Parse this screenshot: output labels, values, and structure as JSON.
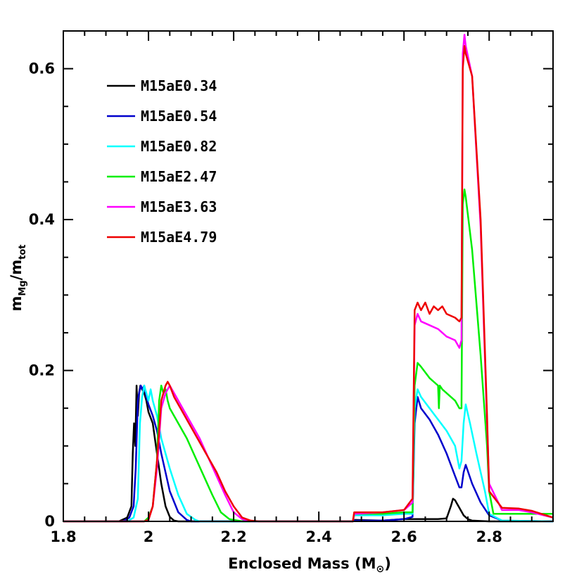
{
  "chart_data": {
    "type": "line",
    "xlabel": "Enclosed Mass (M",
    "xlabel_symbol": "⊙",
    "xlabel_close": ")",
    "ylabel_main": "m",
    "ylabel_sub": "Mg",
    "ylabel_slash": "/m",
    "ylabel_sub2": "tot",
    "xlim": [
      1.8,
      2.95
    ],
    "ylim": [
      0,
      0.65
    ],
    "x_ticks": [
      1.8,
      2.0,
      2.2,
      2.4,
      2.6,
      2.8
    ],
    "x_tick_labels": [
      "1.8",
      "2",
      "2.2",
      "2.4",
      "2.6",
      "2.8"
    ],
    "y_ticks": [
      0,
      0.2,
      0.4,
      0.6
    ],
    "y_tick_labels": [
      "0",
      "0.2",
      "0.4",
      "0.6"
    ],
    "x_minor_step": 0.05,
    "y_minor_step": 0.05,
    "grid": false,
    "legend_position": "top-left",
    "series": [
      {
        "name": "M15aE0.34",
        "color": "#000000",
        "x": [
          1.8,
          1.93,
          1.95,
          1.96,
          1.963,
          1.966,
          1.969,
          1.972,
          1.975,
          1.978,
          1.981,
          1.985,
          1.99,
          1.995,
          2.0,
          2.01,
          2.02,
          2.03,
          2.04,
          2.05,
          2.06,
          2.07,
          2.09,
          2.48,
          2.483,
          2.55,
          2.6,
          2.62,
          2.64,
          2.66,
          2.68,
          2.7,
          2.71,
          2.715,
          2.72,
          2.73,
          2.74,
          2.75,
          2.76,
          2.8,
          2.95
        ],
        "y": [
          0,
          0,
          0.005,
          0.02,
          0.09,
          0.13,
          0.1,
          0.18,
          0.14,
          0.17,
          0.18,
          0.175,
          0.17,
          0.16,
          0.145,
          0.13,
          0.09,
          0.05,
          0.02,
          0.006,
          0.001,
          0,
          0,
          0,
          0.002,
          0.001,
          0.003,
          0.003,
          0.003,
          0.003,
          0.003,
          0.004,
          0.02,
          0.03,
          0.028,
          0.018,
          0.008,
          0.003,
          0.001,
          0,
          0
        ]
      },
      {
        "name": "M15aE0.54",
        "color": "#0000cc",
        "x": [
          1.8,
          1.94,
          1.955,
          1.965,
          1.97,
          1.975,
          1.978,
          1.982,
          1.986,
          1.99,
          1.995,
          2.0,
          2.01,
          2.02,
          2.03,
          2.05,
          2.07,
          2.09,
          2.1,
          2.48,
          2.483,
          2.55,
          2.6,
          2.62,
          2.625,
          2.632,
          2.64,
          2.66,
          2.68,
          2.7,
          2.72,
          2.73,
          2.735,
          2.74,
          2.745,
          2.76,
          2.78,
          2.8,
          2.83,
          2.95
        ],
        "y": [
          0,
          0,
          0.005,
          0.02,
          0.07,
          0.16,
          0.17,
          0.18,
          0.175,
          0.18,
          0.165,
          0.155,
          0.14,
          0.12,
          0.09,
          0.04,
          0.012,
          0.002,
          0,
          0,
          0.001,
          0.001,
          0.003,
          0.006,
          0.13,
          0.165,
          0.15,
          0.135,
          0.115,
          0.09,
          0.06,
          0.045,
          0.045,
          0.065,
          0.075,
          0.05,
          0.025,
          0.008,
          0.001,
          0
        ]
      },
      {
        "name": "M15aE0.82",
        "color": "#00ffff",
        "x": [
          1.8,
          1.95,
          1.965,
          1.975,
          1.98,
          1.985,
          1.99,
          1.995,
          2.0,
          2.005,
          2.01,
          2.02,
          2.03,
          2.05,
          2.07,
          2.09,
          2.11,
          2.12,
          2.48,
          2.483,
          2.55,
          2.6,
          2.62,
          2.625,
          2.632,
          2.64,
          2.66,
          2.68,
          2.7,
          2.72,
          2.73,
          2.735,
          2.74,
          2.745,
          2.755,
          2.77,
          2.79,
          2.8,
          2.83,
          2.95
        ],
        "y": [
          0,
          0,
          0.005,
          0.03,
          0.13,
          0.165,
          0.18,
          0.17,
          0.16,
          0.175,
          0.16,
          0.14,
          0.11,
          0.07,
          0.035,
          0.01,
          0.002,
          0,
          0,
          0.008,
          0.008,
          0.01,
          0.01,
          0.15,
          0.175,
          0.165,
          0.15,
          0.135,
          0.12,
          0.1,
          0.07,
          0.08,
          0.13,
          0.155,
          0.13,
          0.09,
          0.04,
          0.01,
          0.001,
          0
        ]
      },
      {
        "name": "M15aE2.47",
        "color": "#00ee00",
        "x": [
          1.8,
          1.99,
          2.0,
          2.01,
          2.02,
          2.025,
          2.03,
          2.035,
          2.04,
          2.045,
          2.05,
          2.07,
          2.09,
          2.11,
          2.13,
          2.15,
          2.17,
          2.19,
          2.21,
          2.22,
          2.48,
          2.483,
          2.55,
          2.6,
          2.62,
          2.625,
          2.632,
          2.64,
          2.66,
          2.68,
          2.682,
          2.684,
          2.69,
          2.7,
          2.72,
          2.73,
          2.735,
          2.738,
          2.742,
          2.745,
          2.76,
          2.78,
          2.795,
          2.8,
          2.81,
          2.95
        ],
        "y": [
          0,
          0,
          0.005,
          0.02,
          0.08,
          0.16,
          0.18,
          0.17,
          0.175,
          0.16,
          0.15,
          0.13,
          0.11,
          0.085,
          0.06,
          0.035,
          0.012,
          0.003,
          0.001,
          0,
          0,
          0.01,
          0.01,
          0.012,
          0.012,
          0.18,
          0.21,
          0.205,
          0.19,
          0.18,
          0.15,
          0.18,
          0.175,
          0.17,
          0.16,
          0.15,
          0.15,
          0.42,
          0.44,
          0.43,
          0.36,
          0.22,
          0.1,
          0.04,
          0.01,
          0.01
        ]
      },
      {
        "name": "M15aE3.63",
        "color": "#ff00ff",
        "x": [
          1.8,
          1.99,
          2.0,
          2.01,
          2.02,
          2.03,
          2.04,
          2.05,
          2.06,
          2.08,
          2.1,
          2.12,
          2.14,
          2.16,
          2.18,
          2.2,
          2.22,
          2.24,
          2.48,
          2.483,
          2.55,
          2.6,
          2.62,
          2.625,
          2.632,
          2.64,
          2.66,
          2.68,
          2.7,
          2.72,
          2.73,
          2.735,
          2.738,
          2.742,
          2.745,
          2.76,
          2.78,
          2.795,
          2.8,
          2.83,
          2.87,
          2.9,
          2.95
        ],
        "y": [
          0,
          0,
          0.002,
          0.02,
          0.07,
          0.15,
          0.17,
          0.18,
          0.17,
          0.15,
          0.13,
          0.11,
          0.085,
          0.06,
          0.035,
          0.012,
          0.003,
          0,
          0,
          0.01,
          0.012,
          0.015,
          0.025,
          0.26,
          0.275,
          0.265,
          0.26,
          0.255,
          0.245,
          0.24,
          0.23,
          0.24,
          0.62,
          0.645,
          0.63,
          0.59,
          0.39,
          0.13,
          0.05,
          0.015,
          0.015,
          0.012,
          0.005
        ]
      },
      {
        "name": "M15aE4.79",
        "color": "#ee0000",
        "x": [
          1.8,
          1.99,
          2.0,
          2.01,
          2.02,
          2.03,
          2.04,
          2.045,
          2.05,
          2.06,
          2.08,
          2.1,
          2.12,
          2.14,
          2.16,
          2.18,
          2.2,
          2.22,
          2.24,
          2.26,
          2.48,
          2.483,
          2.55,
          2.6,
          2.62,
          2.625,
          2.632,
          2.64,
          2.65,
          2.66,
          2.67,
          2.68,
          2.69,
          2.7,
          2.72,
          2.73,
          2.735,
          2.738,
          2.742,
          2.745,
          2.76,
          2.78,
          2.795,
          2.8,
          2.83,
          2.87,
          2.9,
          2.95
        ],
        "y": [
          0,
          0,
          0.002,
          0.02,
          0.08,
          0.16,
          0.18,
          0.185,
          0.18,
          0.165,
          0.145,
          0.125,
          0.105,
          0.085,
          0.065,
          0.04,
          0.02,
          0.005,
          0.001,
          0,
          0,
          0.012,
          0.012,
          0.015,
          0.03,
          0.28,
          0.29,
          0.28,
          0.29,
          0.275,
          0.285,
          0.28,
          0.285,
          0.275,
          0.27,
          0.265,
          0.27,
          0.6,
          0.63,
          0.62,
          0.59,
          0.4,
          0.14,
          0.04,
          0.018,
          0.017,
          0.014,
          0.005
        ]
      }
    ]
  }
}
